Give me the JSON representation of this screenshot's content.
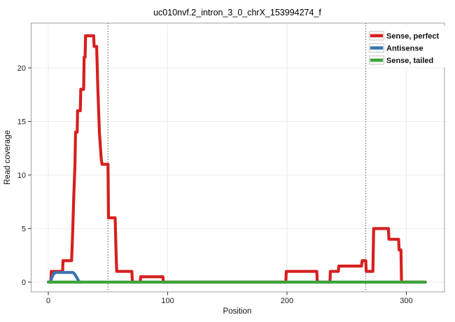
{
  "chart_data": {
    "type": "line",
    "title": "uc010nvf.2_intron_3_0_chrX_153994274_f",
    "xlabel": "Position",
    "ylabel": "Read coverage",
    "x_ticks": [
      0,
      100,
      200,
      300
    ],
    "y_ticks": [
      0,
      5,
      10,
      15,
      20
    ],
    "xlim": [
      -14,
      331
    ],
    "ylim": [
      -0.92,
      24.2
    ],
    "grid": true,
    "grid_color": "#ededed",
    "panel_border_color": "#a0a0a0",
    "legend_position": "top-right",
    "vlines": {
      "positions": [
        50,
        266
      ],
      "style": "dotted",
      "color": "#4d4d4d"
    },
    "series": [
      {
        "name": "Sense, perfect",
        "color": "#d6201f",
        "points": [
          [
            0,
            0
          ],
          [
            2,
            0
          ],
          [
            2.5,
            1
          ],
          [
            12,
            1
          ],
          [
            12.3,
            2
          ],
          [
            19.5,
            2
          ],
          [
            20.5,
            5
          ],
          [
            21.3,
            8
          ],
          [
            22.3,
            11
          ],
          [
            22.8,
            14
          ],
          [
            24.2,
            14
          ],
          [
            24.5,
            16
          ],
          [
            26.8,
            16
          ],
          [
            27.2,
            18
          ],
          [
            29.6,
            18
          ],
          [
            30,
            21
          ],
          [
            30.8,
            21
          ],
          [
            31.2,
            23
          ],
          [
            38,
            23
          ],
          [
            38.4,
            22
          ],
          [
            40.5,
            22
          ],
          [
            41.5,
            18
          ],
          [
            42.8,
            14
          ],
          [
            44.3,
            11.5
          ],
          [
            45,
            11
          ],
          [
            50,
            11
          ],
          [
            50.4,
            6
          ],
          [
            56,
            6
          ],
          [
            56.6,
            3.5
          ],
          [
            57.3,
            1
          ],
          [
            70,
            1
          ],
          [
            70.4,
            0
          ],
          [
            77,
            0
          ],
          [
            77.4,
            0.5
          ],
          [
            96,
            0.5
          ],
          [
            96.4,
            0
          ],
          [
            199,
            0
          ],
          [
            199.4,
            1
          ],
          [
            225,
            1
          ],
          [
            225.4,
            0
          ],
          [
            236,
            0
          ],
          [
            236.4,
            1
          ],
          [
            243,
            1
          ],
          [
            243.4,
            1.5
          ],
          [
            262.5,
            1.5
          ],
          [
            263,
            2
          ],
          [
            266,
            2
          ],
          [
            266.4,
            1
          ],
          [
            272,
            1
          ],
          [
            272.6,
            5
          ],
          [
            285,
            5
          ],
          [
            285.4,
            4
          ],
          [
            293.5,
            4
          ],
          [
            294,
            3
          ],
          [
            295.5,
            3
          ],
          [
            296,
            0
          ],
          [
            316,
            0
          ]
        ]
      },
      {
        "name": "Antisense",
        "color": "#3a73b3",
        "points": [
          [
            0,
            0
          ],
          [
            1.8,
            0
          ],
          [
            3,
            0.45
          ],
          [
            4.5,
            0.8
          ],
          [
            6.5,
            0.9
          ],
          [
            20.5,
            0.9
          ],
          [
            22,
            0.75
          ],
          [
            24,
            0.4
          ],
          [
            25.8,
            0
          ],
          [
            28,
            0
          ]
        ]
      },
      {
        "name": "Sense, tailed",
        "color": "#3fa33c",
        "points": [
          [
            0,
            0
          ],
          [
            316,
            0
          ]
        ]
      }
    ]
  }
}
